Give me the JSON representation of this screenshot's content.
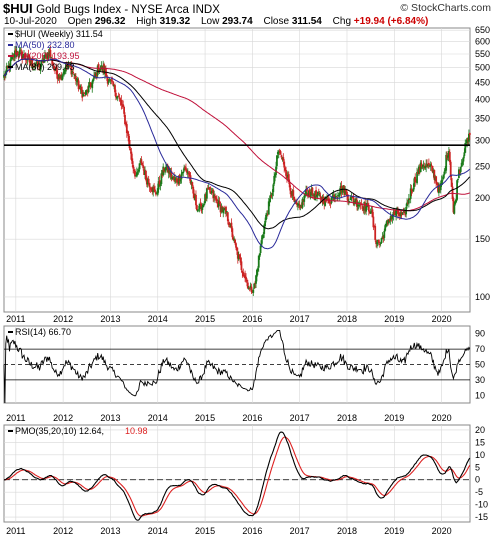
{
  "header": {
    "symbol": "$HUI",
    "description": "Gold Bugs Index - NYSE Arca",
    "exchange": "INDX",
    "date": "10-Jul-2020",
    "open_label": "Open",
    "open": "296.32",
    "high_label": "High",
    "high": "319.32",
    "low_label": "Low",
    "low": "293.74",
    "close_label": "Close",
    "close": "311.54",
    "chg_label": "Chg",
    "chg": "+19.94 (+6.84%)",
    "watermark": "© StockCharts.com"
  },
  "colors": {
    "up": "#1a7a1a",
    "down": "#cc2222",
    "ma50": "#2a2a9a",
    "ma200": "#c0103a",
    "ma80": "#000000",
    "rsi": "#000000",
    "pmo": "#000000",
    "pmo_signal": "#dd2222",
    "grid": "#d8d8d8"
  },
  "chart_data": [
    {
      "type": "candlestick",
      "legend": [
        {
          "label": "$HUI (Weekly) 311.54",
          "color": "#000000"
        },
        {
          "label": "MA(50) 232.80",
          "color": "#2a2a9a"
        },
        {
          "label": "MA(200) 193.95",
          "color": "#c0103a"
        },
        {
          "label": "MA(80) 209.43",
          "color": "#000000"
        }
      ],
      "yscale": "log",
      "ylim": [
        90,
        660
      ],
      "y_ticks": [
        650,
        600,
        550,
        500,
        450,
        400,
        350,
        300,
        250,
        200,
        150,
        100
      ],
      "horizontal_line": 290,
      "x_tick_labels": [
        "2011",
        "2012",
        "2013",
        "2014",
        "2015",
        "2016",
        "2017",
        "2018",
        "2019",
        "2020"
      ],
      "x_range": [
        2010.75,
        2020.6
      ],
      "close_series": {
        "x": [
          2010.75,
          2010.9,
          2011.0,
          2011.15,
          2011.3,
          2011.5,
          2011.65,
          2011.7,
          2011.75,
          2011.85,
          2011.95,
          2012.05,
          2012.15,
          2012.25,
          2012.35,
          2012.45,
          2012.55,
          2012.65,
          2012.75,
          2012.85,
          2012.95,
          2013.05,
          2013.15,
          2013.25,
          2013.35,
          2013.45,
          2013.55,
          2013.65,
          2013.75,
          2013.85,
          2013.95,
          2014.05,
          2014.15,
          2014.25,
          2014.35,
          2014.45,
          2014.55,
          2014.65,
          2014.75,
          2014.85,
          2014.95,
          2015.05,
          2015.15,
          2015.25,
          2015.35,
          2015.45,
          2015.55,
          2015.65,
          2015.75,
          2015.85,
          2015.95,
          2016.05,
          2016.15,
          2016.25,
          2016.35,
          2016.45,
          2016.55,
          2016.6,
          2016.7,
          2016.8,
          2016.9,
          2017.0,
          2017.15,
          2017.3,
          2017.45,
          2017.6,
          2017.75,
          2017.9,
          2018.05,
          2018.2,
          2018.35,
          2018.5,
          2018.6,
          2018.7,
          2018.8,
          2018.9,
          2019.05,
          2019.2,
          2019.35,
          2019.5,
          2019.6,
          2019.7,
          2019.8,
          2019.95,
          2020.05,
          2020.1,
          2020.15,
          2020.2,
          2020.25,
          2020.3,
          2020.35,
          2020.4,
          2020.45,
          2020.5,
          2020.55,
          2020.6
        ],
        "y": [
          470,
          520,
          560,
          545,
          520,
          500,
          545,
          560,
          530,
          480,
          470,
          505,
          500,
          470,
          430,
          410,
          435,
          460,
          500,
          495,
          460,
          440,
          410,
          380,
          320,
          260,
          230,
          260,
          230,
          220,
          205,
          225,
          250,
          240,
          225,
          230,
          245,
          240,
          205,
          185,
          190,
          210,
          205,
          195,
          185,
          180,
          160,
          140,
          125,
          115,
          105,
          108,
          135,
          165,
          190,
          220,
          280,
          270,
          245,
          215,
          190,
          185,
          210,
          205,
          200,
          195,
          205,
          215,
          200,
          195,
          190,
          185,
          150,
          145,
          160,
          175,
          180,
          175,
          210,
          240,
          255,
          250,
          245,
          210,
          235,
          265,
          285,
          230,
          180,
          200,
          240,
          250,
          270,
          285,
          300,
          311.5
        ]
      }
    },
    {
      "type": "line",
      "legend": [
        {
          "label": "RSI(14) 66.70",
          "color": "#000000"
        }
      ],
      "ylim": [
        0,
        100
      ],
      "y_ticks": [
        90,
        70,
        50,
        30,
        10
      ],
      "bands": [
        70,
        30
      ],
      "midline": 50
    },
    {
      "type": "line",
      "legend": [
        {
          "label": "PMO(35,20,10) 12.64,",
          "color": "#000000"
        },
        {
          "label": "10.98",
          "color": "#dd2222"
        }
      ],
      "ylim": [
        -17,
        22
      ],
      "y_ticks": [
        20,
        15,
        10,
        5,
        0,
        -5,
        -10,
        -15
      ],
      "zero_line": 0
    }
  ]
}
